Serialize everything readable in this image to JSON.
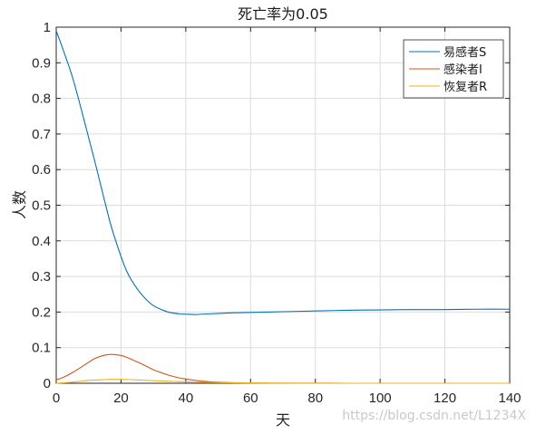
{
  "chart_data": {
    "type": "line",
    "title": "死亡率为0.05",
    "xlabel": "天",
    "ylabel": "人数",
    "xlim": [
      0,
      140
    ],
    "ylim": [
      0,
      1
    ],
    "xticks": [
      0,
      20,
      40,
      60,
      80,
      100,
      120,
      140
    ],
    "yticks": [
      0,
      0.1,
      0.2,
      0.3,
      0.4,
      0.5,
      0.6,
      0.7,
      0.8,
      0.9,
      1
    ],
    "grid": true,
    "legend_position": "top-right",
    "x": [
      0,
      2,
      5,
      8,
      10,
      12,
      15,
      17,
      20,
      22,
      25,
      28,
      30,
      33,
      35,
      38,
      40,
      43,
      45,
      50,
      55,
      60,
      65,
      70,
      80,
      90,
      100,
      110,
      120,
      130,
      140
    ],
    "series": [
      {
        "name": "易感者S",
        "color": "#0072BD",
        "values": [
          0.99,
          0.94,
          0.86,
          0.76,
          0.69,
          0.62,
          0.51,
          0.44,
          0.356,
          0.31,
          0.265,
          0.233,
          0.218,
          0.205,
          0.199,
          0.195,
          0.194,
          0.193,
          0.194,
          0.196,
          0.198,
          0.199,
          0.2,
          0.201,
          0.203,
          0.205,
          0.206,
          0.207,
          0.207,
          0.208,
          0.208
        ]
      },
      {
        "name": "感染者I",
        "color": "#D95319",
        "values": [
          0.01,
          0.016,
          0.03,
          0.047,
          0.059,
          0.07,
          0.079,
          0.081,
          0.078,
          0.072,
          0.06,
          0.047,
          0.038,
          0.028,
          0.022,
          0.015,
          0.012,
          0.008,
          0.006,
          0.003,
          0.0015,
          0.0008,
          0.0004,
          0.0002,
          0.0001,
          0,
          0,
          0,
          0,
          0,
          0
        ]
      },
      {
        "name": "恢复者R",
        "color": "#EDB120",
        "values": [
          0,
          0.0012,
          0.003,
          0.006,
          0.008,
          0.009,
          0.0105,
          0.011,
          0.011,
          0.0105,
          0.0095,
          0.0083,
          0.0075,
          0.0064,
          0.0056,
          0.0046,
          0.004,
          0.0032,
          0.0027,
          0.0018,
          0.0012,
          0.0008,
          0.0005,
          0.0003,
          0.0001,
          0,
          0,
          0,
          0,
          0,
          0
        ]
      }
    ]
  },
  "watermark": "https://blog.csdn.net/L1234X"
}
